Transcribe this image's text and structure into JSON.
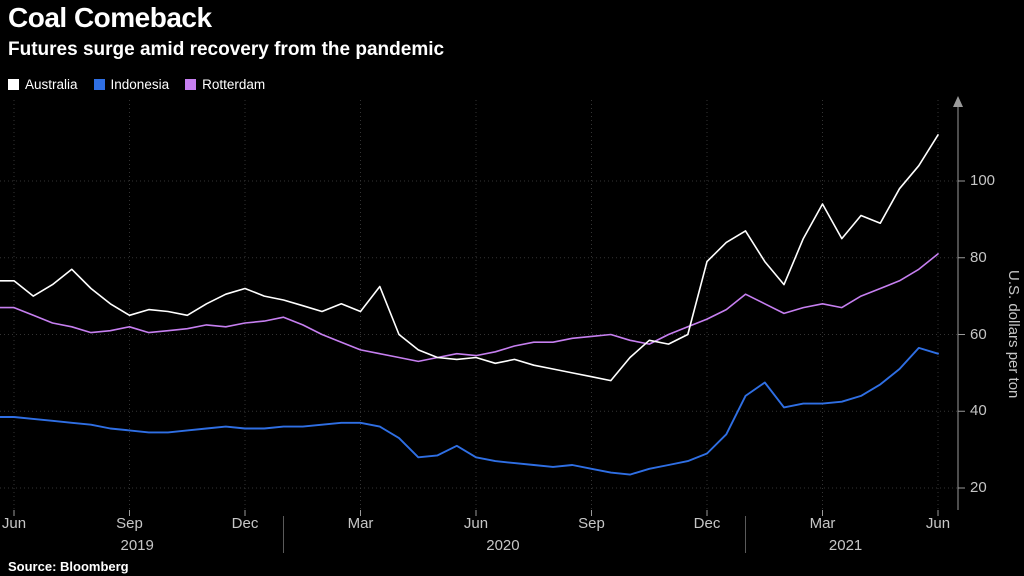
{
  "chart_data": {
    "type": "line",
    "title": "Coal Comeback",
    "subtitle": "Futures surge amid recovery from the pandemic",
    "source": "Source: Bloomberg",
    "ylabel": "U.S. dollars per ton",
    "background": "#000000",
    "grid": true,
    "grid_color": "#343434",
    "axis_color": "#9a9a9a",
    "tick_label_color": "#c6c6c6",
    "legend_position": "top-left",
    "x_start": "Jun 2019",
    "x_step_months": 0.5,
    "x_ticks": [
      {
        "label": "Jun",
        "m": 0
      },
      {
        "label": "Sep",
        "m": 3
      },
      {
        "label": "Dec",
        "m": 6
      },
      {
        "label": "Mar",
        "m": 9
      },
      {
        "label": "Jun",
        "m": 12
      },
      {
        "label": "Sep",
        "m": 15
      },
      {
        "label": "Dec",
        "m": 18
      },
      {
        "label": "Mar",
        "m": 21
      },
      {
        "label": "Jun",
        "m": 24
      }
    ],
    "year_labels": [
      {
        "label": "2019",
        "center_m": 3.2
      },
      {
        "label": "2020",
        "center_m": 12.7
      },
      {
        "label": "2021",
        "center_m": 21.6
      }
    ],
    "year_separators_m": [
      7,
      19
    ],
    "y_ticks": [
      20,
      40,
      60,
      80,
      100
    ],
    "ylim": [
      14,
      121
    ],
    "series": [
      {
        "name": "Australia",
        "color": "#ffffff",
        "values": [
          74,
          70,
          73,
          77,
          72,
          68,
          65,
          66.5,
          66,
          65,
          68,
          70.5,
          72,
          70,
          69,
          67.5,
          66,
          68,
          66,
          72.5,
          60,
          56,
          54,
          53.5,
          54,
          52.5,
          53.5,
          52,
          51,
          50,
          49,
          48,
          54,
          58.5,
          57.5,
          60,
          79,
          84,
          87,
          79,
          73,
          85,
          94,
          85,
          91,
          89,
          98,
          104,
          112
        ]
      },
      {
        "name": "Indonesia",
        "color": "#2f6fe4",
        "values": [
          38.5,
          38,
          37.5,
          37,
          36.5,
          35.5,
          35,
          34.5,
          34.5,
          35,
          35.5,
          36,
          35.5,
          35.5,
          36,
          36,
          36.5,
          37,
          37,
          36,
          33,
          28,
          28.5,
          31,
          28,
          27,
          26.5,
          26,
          25.5,
          26,
          25,
          24,
          23.5,
          25,
          26,
          27,
          29,
          34,
          44,
          47.5,
          41,
          42,
          42,
          42.5,
          44,
          47,
          51,
          56.5,
          55
        ]
      },
      {
        "name": "Rotterdam",
        "color": "#c67ff0",
        "values": [
          67,
          65,
          63,
          62,
          60.5,
          61,
          62,
          60.5,
          61,
          61.5,
          62.5,
          62,
          63,
          63.5,
          64.5,
          62.5,
          60,
          58,
          56,
          55,
          54,
          53,
          54,
          55,
          54.5,
          55.5,
          57,
          58,
          58,
          59,
          59.5,
          60,
          58.5,
          57.5,
          60,
          62,
          64,
          66.5,
          70.5,
          68,
          65.5,
          67,
          68,
          67,
          70,
          72,
          74,
          77,
          81
        ]
      }
    ]
  }
}
